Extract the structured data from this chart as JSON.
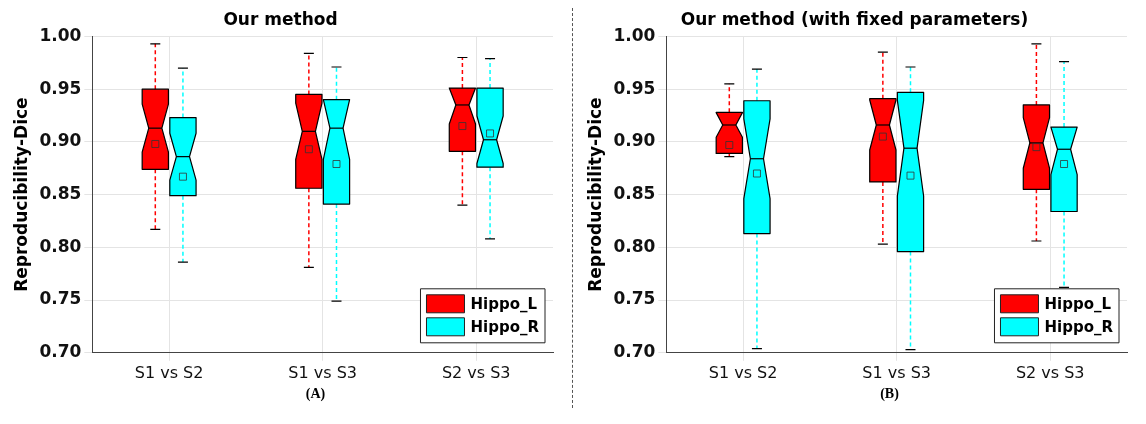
{
  "chart_data": [
    {
      "type": "box",
      "title": "Our method",
      "ylabel": "Reproducibility-Dice",
      "categories": [
        "S1 vs S2",
        "S1 vs S3",
        "S2 vs S3"
      ],
      "ylim": [
        0.7,
        1.0
      ],
      "yticks": [
        {
          "value": 0.7,
          "label": "0.70"
        },
        {
          "value": 0.75,
          "label": "0.75"
        },
        {
          "value": 0.8,
          "label": "0.80"
        },
        {
          "value": 0.85,
          "label": "0.85"
        },
        {
          "value": 0.9,
          "label": "0.90"
        },
        {
          "value": 0.95,
          "label": "0.95"
        },
        {
          "value": 1.0,
          "label": "1.00"
        }
      ],
      "grid": true,
      "legend": "bottom right",
      "marker": "square",
      "annotations": [
        "(A)"
      ],
      "series": [
        {
          "name": "Hippo_L",
          "color": "#ff0000",
          "boxes": [
            {
              "low": 0.817,
              "q1": 0.874,
              "median": 0.913,
              "q3": 0.95,
              "high": 0.993,
              "mean": 0.898
            },
            {
              "low": 0.781,
              "q1": 0.856,
              "median": 0.91,
              "q3": 0.945,
              "high": 0.984,
              "mean": 0.893
            },
            {
              "low": 0.84,
              "q1": 0.891,
              "median": 0.935,
              "q3": 0.951,
              "high": 0.98,
              "mean": 0.915
            }
          ]
        },
        {
          "name": "Hippo_R",
          "color": "#00ffff",
          "boxes": [
            {
              "low": 0.786,
              "q1": 0.849,
              "median": 0.886,
              "q3": 0.923,
              "high": 0.97,
              "mean": 0.867
            },
            {
              "low": 0.749,
              "q1": 0.841,
              "median": 0.913,
              "q3": 0.94,
              "high": 0.971,
              "mean": 0.879
            },
            {
              "low": 0.808,
              "q1": 0.876,
              "median": 0.902,
              "q3": 0.951,
              "high": 0.979,
              "mean": 0.908
            }
          ]
        }
      ]
    },
    {
      "type": "box",
      "title": "Our method (with fixed parameters)",
      "ylabel": "Reproducibility-Dice",
      "categories": [
        "S1 vs S2",
        "S1 vs S3",
        "S2 vs S3"
      ],
      "ylim": [
        0.7,
        1.0
      ],
      "yticks": [
        {
          "value": 0.7,
          "label": "0.70"
        },
        {
          "value": 0.75,
          "label": "0.75"
        },
        {
          "value": 0.8,
          "label": "0.80"
        },
        {
          "value": 0.85,
          "label": "0.85"
        },
        {
          "value": 0.9,
          "label": "0.90"
        },
        {
          "value": 0.95,
          "label": "0.95"
        },
        {
          "value": 1.0,
          "label": "1.00"
        }
      ],
      "grid": true,
      "legend": "bottom right",
      "marker": "square",
      "annotations": [
        "(B)"
      ],
      "series": [
        {
          "name": "Hippo_L",
          "color": "#ff0000",
          "boxes": [
            {
              "low": 0.886,
              "q1": 0.889,
              "median": 0.916,
              "q3": 0.928,
              "high": 0.955,
              "mean": 0.897
            },
            {
              "low": 0.803,
              "q1": 0.862,
              "median": 0.916,
              "q3": 0.941,
              "high": 0.985,
              "mean": 0.905
            },
            {
              "low": 0.806,
              "q1": 0.855,
              "median": 0.899,
              "q3": 0.935,
              "high": 0.993,
              "mean": 0.895
            }
          ]
        },
        {
          "name": "Hippo_R",
          "color": "#00ffff",
          "boxes": [
            {
              "low": 0.704,
              "q1": 0.813,
              "median": 0.884,
              "q3": 0.939,
              "high": 0.969,
              "mean": 0.87
            },
            {
              "low": 0.703,
              "q1": 0.796,
              "median": 0.894,
              "q3": 0.947,
              "high": 0.971,
              "mean": 0.868
            },
            {
              "low": 0.762,
              "q1": 0.834,
              "median": 0.893,
              "q3": 0.914,
              "high": 0.976,
              "mean": 0.879
            }
          ]
        }
      ]
    }
  ]
}
